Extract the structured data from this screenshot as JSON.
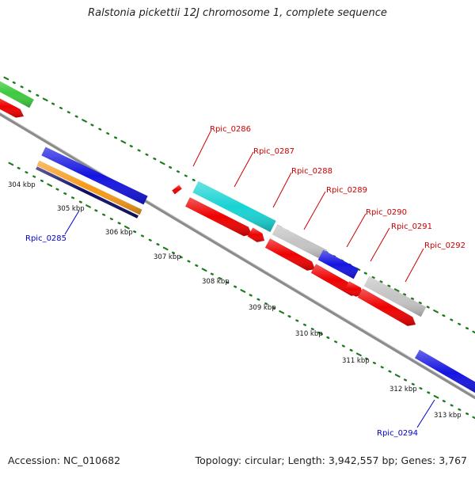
{
  "title": "Ralstonia pickettii 12J chromosome 1, complete sequence",
  "footer": {
    "accession": "Accession: NC_010682",
    "summary": "Topology: circular; Length: 3,942,557 bp; Genes: 3,767"
  },
  "scale_labels": [
    "304 kbp",
    "305 kbp",
    "306 kbp",
    "307 kbp",
    "308 kbp",
    "309 kbp",
    "310 kbp",
    "311 kbp",
    "312 kbp",
    "313 kbp"
  ],
  "gene_labels": [
    "Rpic_0285",
    "Rpic_0286",
    "Rpic_0287",
    "Rpic_0288",
    "Rpic_0289",
    "Rpic_0290",
    "Rpic_0291",
    "Rpic_0292",
    "Rpic_0294"
  ],
  "colors": {
    "backbone": "#8c8c8c",
    "tick": "#1e7a1e",
    "forward_label": "#cc0000",
    "reverse_label": "#0000cc",
    "green_feature": "#3ec93e",
    "red_feature": "#ee0000",
    "blue_feature": "#1414e0",
    "navy_feature": "#0a0a66",
    "orange_feature": "#f59a1a",
    "cyan_feature": "#19d3d3",
    "grey_feature": "#c4c4c4"
  }
}
